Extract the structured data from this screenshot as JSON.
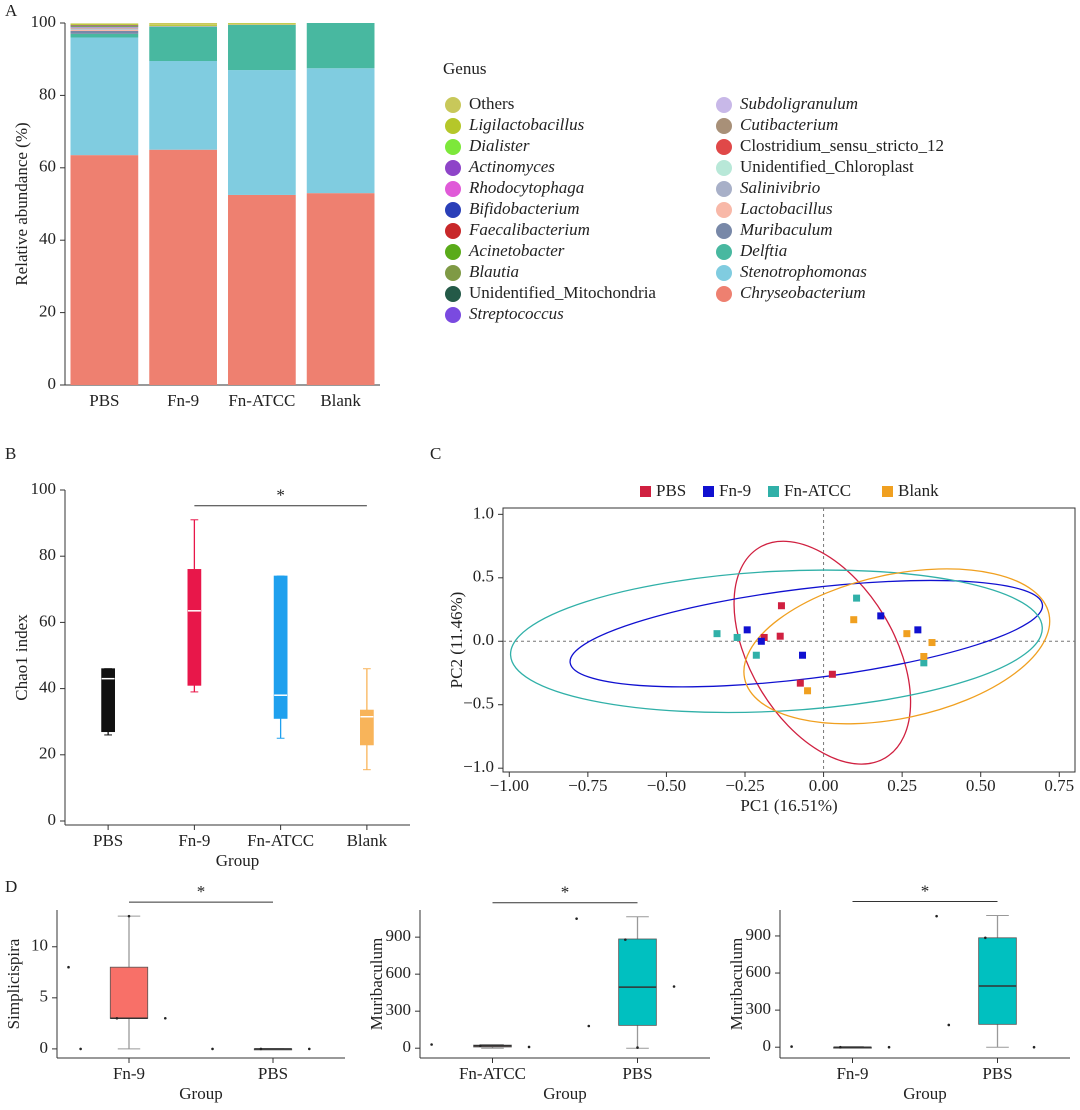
{
  "chart_data": [
    {
      "panel": "A",
      "type": "bar",
      "stacked": true,
      "ylabel": "Relative abundance (%)",
      "legend_title": "Genus",
      "categories": [
        "PBS",
        "Fn-9",
        "Fn-ATCC",
        "Blank"
      ],
      "ylim": [
        0,
        100
      ],
      "yticks": [
        0,
        20,
        40,
        60,
        80,
        100
      ],
      "series": [
        {
          "name": "Others",
          "color": "#c8c85a",
          "values": [
            0.2,
            0.5,
            0.1,
            0
          ]
        },
        {
          "name": "Ligilactobacillus",
          "style": "italic",
          "color": "#b5c72a",
          "values": [
            0.3,
            0.3,
            0.3,
            0
          ]
        },
        {
          "name": "Dialister",
          "style": "italic",
          "color": "#7de83a",
          "values": [
            0,
            0,
            0,
            0
          ]
        },
        {
          "name": "Actinomyces",
          "style": "italic",
          "color": "#8e44c8",
          "values": [
            0,
            0,
            0,
            0
          ]
        },
        {
          "name": "Rhodocytophaga",
          "style": "italic",
          "color": "#e05ad8",
          "values": [
            0,
            0,
            0,
            0
          ]
        },
        {
          "name": "Bifidobacterium",
          "style": "italic",
          "color": "#2a3fb8",
          "values": [
            0.1,
            0,
            0,
            0
          ]
        },
        {
          "name": "Faecalibacterium",
          "style": "italic",
          "color": "#c8282a",
          "values": [
            0.1,
            0,
            0,
            0
          ]
        },
        {
          "name": "Acinetobacter",
          "style": "italic",
          "color": "#5aab1a",
          "values": [
            0.1,
            0,
            0,
            0
          ]
        },
        {
          "name": "Blautia",
          "style": "italic",
          "color": "#7f9a45",
          "values": [
            0.1,
            0,
            0,
            0
          ]
        },
        {
          "name": "Unidentified_Mitochondria",
          "color": "#245a48",
          "values": [
            0.1,
            0,
            0,
            0
          ]
        },
        {
          "name": "Streptococcus",
          "style": "italic",
          "color": "#7a4ae0",
          "values": [
            0.1,
            0,
            0,
            0
          ]
        },
        {
          "name": "Subdoligranulum",
          "style": "italic",
          "color": "#c8b8e8",
          "values": [
            0.1,
            0,
            0,
            0
          ]
        },
        {
          "name": "Cutibacterium",
          "style": "italic",
          "color": "#a89078",
          "values": [
            0.1,
            0,
            0,
            0
          ]
        },
        {
          "name": "Clostridium_sensu_stricto_12",
          "color": "#e04848",
          "values": [
            0.1,
            0,
            0,
            0
          ]
        },
        {
          "name": "Unidentified_Chloroplast",
          "color": "#b8e8d8",
          "values": [
            0.2,
            0,
            0,
            0
          ]
        },
        {
          "name": "Salinivibrio",
          "style": "italic",
          "color": "#a8b0c8",
          "values": [
            0.2,
            0,
            0,
            0
          ]
        },
        {
          "name": "Lactobacillus",
          "style": "italic",
          "color": "#f8b8a8",
          "values": [
            0.3,
            0.1,
            0.1,
            0
          ]
        },
        {
          "name": "Muribaculum",
          "style": "italic",
          "color": "#7888a8",
          "values": [
            0.8,
            0.1,
            0,
            0
          ]
        },
        {
          "name": "Delftia",
          "style": "italic",
          "color": "#48b8a0",
          "values": [
            1.0,
            9.5,
            12.5,
            12.5
          ]
        },
        {
          "name": "Stenotrophomonas",
          "style": "italic",
          "color": "#80cce0",
          "values": [
            32.5,
            24.5,
            34.5,
            34.5
          ]
        },
        {
          "name": "Chryseobacterium",
          "style": "italic",
          "color": "#ee8070",
          "values": [
            63.5,
            65,
            52.5,
            53
          ]
        }
      ]
    },
    {
      "panel": "B",
      "type": "box",
      "xlabel": "Group",
      "ylabel": "Chao1 index",
      "categories": [
        "PBS",
        "Fn-9",
        "Fn-ATCC",
        "Blank"
      ],
      "colors": [
        "#111111",
        "#e8174a",
        "#1fa0ee",
        "#f8b45a"
      ],
      "median_color": "#ffffff",
      "ylim": [
        0,
        100
      ],
      "yticks": [
        0,
        20,
        40,
        60,
        80,
        100
      ],
      "boxes": [
        {
          "min": 26,
          "q1": 27,
          "median": 43,
          "q3": 46,
          "max": 46
        },
        {
          "min": 39,
          "q1": 41,
          "median": 63.5,
          "q3": 76,
          "max": 91
        },
        {
          "min": 25,
          "q1": 31,
          "median": 38,
          "q3": 74,
          "max": 74
        },
        {
          "min": 15.5,
          "q1": 23,
          "median": 31.5,
          "q3": 33.5,
          "max": 46
        }
      ],
      "significance": {
        "text": "*",
        "groups": [
          "Fn-9",
          "Blank"
        ]
      }
    },
    {
      "panel": "C",
      "type": "scatter",
      "xlabel": "PC1 (16.51%)",
      "ylabel": "PC2 (11.46%)",
      "xlim": [
        -1.02,
        0.8
      ],
      "ylim": [
        -1.03,
        1.05
      ],
      "xticks": [
        {
          "value": -1,
          "label": "−1.00"
        },
        {
          "value": -0.75,
          "label": "−0.75"
        },
        {
          "value": -0.5,
          "label": "−0.50"
        },
        {
          "value": -0.25,
          "label": "−0.25"
        },
        {
          "value": 0,
          "label": "0.00"
        },
        {
          "value": 0.25,
          "label": "0.25"
        },
        {
          "value": 0.5,
          "label": "0.50"
        },
        {
          "value": 0.75,
          "label": "0.75"
        }
      ],
      "yticks": [
        {
          "value": -1,
          "label": "−1.0"
        },
        {
          "value": -0.5,
          "label": "−0.5"
        },
        {
          "value": 0,
          "label": "0.0"
        },
        {
          "value": 0.5,
          "label": "0.5"
        },
        {
          "value": 1,
          "label": "1.0"
        }
      ],
      "series": [
        {
          "name": "PBS",
          "color": "#d02040",
          "x": [
            -0.134,
            -0.189,
            -0.138,
            -0.074,
            0.028
          ],
          "y": [
            0.28,
            0.03,
            0.04,
            -0.33,
            -0.26
          ],
          "ellipse": {
            "cx": -0.004,
            "cy": -0.09,
            "rx": 0.39,
            "ry": 0.567,
            "angle": 59
          }
        },
        {
          "name": "Fn-9",
          "color": "#1010d0",
          "x": [
            -0.243,
            -0.198,
            -0.067,
            0.182,
            0.3
          ],
          "y": [
            0.09,
            0.0,
            -0.11,
            0.2,
            0.09
          ],
          "ellipse": {
            "cx": -0.055,
            "cy": 0.06,
            "rx": 0.757,
            "ry": 0.354,
            "angle": -7
          }
        },
        {
          "name": "Fn-ATCC",
          "color": "#30b0a8",
          "x": [
            -0.339,
            -0.275,
            -0.214,
            0.105,
            0.319
          ],
          "y": [
            0.06,
            0.03,
            -0.11,
            0.34,
            -0.17
          ],
          "ellipse": {
            "cx": -0.15,
            "cy": 0.0,
            "rx": 0.847,
            "ry": 0.551,
            "angle": -3
          }
        },
        {
          "name": "Blank",
          "color": "#f0a020",
          "x": [
            0.096,
            0.265,
            0.345,
            0.319,
            -0.051
          ],
          "y": [
            0.17,
            0.06,
            -0.01,
            -0.12,
            -0.39
          ],
          "ellipse": {
            "cx": 0.233,
            "cy": -0.04,
            "rx": 0.495,
            "ry": 0.567,
            "angle": -12
          }
        }
      ]
    },
    {
      "panel": "D",
      "type": "box",
      "xlabel": "Group",
      "ylabel": "Simplicispira",
      "categories": [
        "Fn-9",
        "PBS"
      ],
      "colors": [
        "#f87068",
        "#00c0c0"
      ],
      "median_color": "#333333",
      "ylim": [
        -0.5,
        13.6
      ],
      "yticks": [
        0,
        5,
        10
      ],
      "boxes": [
        {
          "min": 0,
          "q1": 3,
          "median": 3,
          "q3": 8,
          "max": 13,
          "points": [
            8,
            3,
            3,
            0,
            13
          ]
        },
        {
          "min": 0,
          "q1": 0,
          "median": 0,
          "q3": 0,
          "max": 0,
          "points": [
            0,
            0,
            0
          ]
        }
      ],
      "significance": {
        "text": "*",
        "groups": [
          "Fn-9",
          "PBS"
        ]
      }
    },
    {
      "type": "box",
      "xlabel": "Group",
      "ylabel": "Muribaculum",
      "categories": [
        "Fn-ATCC",
        "PBS"
      ],
      "colors": [
        "#f87068",
        "#00c0c0"
      ],
      "median_color": "#333333",
      "ylim": [
        -47,
        1120
      ],
      "yticks": [
        0,
        300,
        600,
        900
      ],
      "boxes": [
        {
          "min": 0,
          "q1": 10,
          "median": 20,
          "q3": 25,
          "max": 30,
          "points": [
            30,
            20,
            10
          ]
        },
        {
          "min": 0,
          "q1": 185,
          "median": 495,
          "q3": 885,
          "max": 1065,
          "points": [
            1050,
            880,
            500,
            180,
            5
          ]
        }
      ],
      "significance": {
        "text": "*",
        "groups": [
          "Fn-ATCC",
          "PBS"
        ]
      }
    },
    {
      "type": "box",
      "xlabel": "Group",
      "ylabel": "Muribaculum",
      "categories": [
        "Fn-9",
        "PBS"
      ],
      "colors": [
        "#f87068",
        "#00c0c0"
      ],
      "median_color": "#333333",
      "ylim": [
        -55,
        1110
      ],
      "yticks": [
        0,
        300,
        600,
        900
      ],
      "boxes": [
        {
          "min": 0,
          "q1": 0,
          "median": 0,
          "q3": 0,
          "max": 5,
          "points": [
            5,
            0,
            0
          ]
        },
        {
          "min": 0,
          "q1": 185,
          "median": 495,
          "q3": 885,
          "max": 1065,
          "points": [
            1060,
            885,
            0,
            180
          ]
        }
      ],
      "significance": {
        "text": "*",
        "groups": [
          "Fn-9",
          "PBS"
        ]
      }
    }
  ]
}
